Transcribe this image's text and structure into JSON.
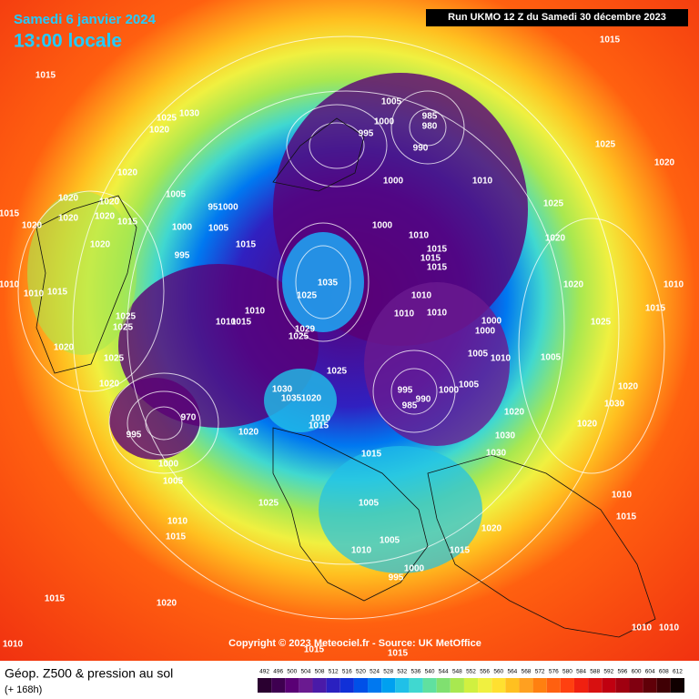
{
  "header": {
    "date": "Samedi 6 janvier 2024",
    "time": "13:00 locale",
    "run": "Run UKMO 12 Z du Samedi 30 décembre 2023"
  },
  "copyright": "Copyright © 2023 Meteociel.fr - Source: UK MetOffice",
  "footer": {
    "title": "Géop. Z500 & pression au sol",
    "lead": "(+ 168h)"
  },
  "scale": {
    "values": [
      492,
      496,
      500,
      504,
      508,
      512,
      516,
      520,
      524,
      528,
      532,
      536,
      540,
      544,
      548,
      552,
      556,
      560,
      564,
      568,
      572,
      576,
      580,
      584,
      588,
      592,
      596,
      600,
      604,
      608,
      612
    ],
    "colors": [
      "#2a0030",
      "#3e0050",
      "#5a0075",
      "#6a1a90",
      "#4a1aa8",
      "#2a20c0",
      "#1030d8",
      "#0050e8",
      "#0078f0",
      "#00a0f0",
      "#20c0e8",
      "#40d8d0",
      "#60e0a0",
      "#80e070",
      "#a8e850",
      "#d0f040",
      "#f0f040",
      "#ffe030",
      "#ffc020",
      "#ffa020",
      "#ff8010",
      "#ff6010",
      "#ff4010",
      "#f02010",
      "#d81010",
      "#c00010",
      "#a00010",
      "#800010",
      "#600008",
      "#400004",
      "#100000"
    ]
  },
  "isobar_labels": [
    "1015",
    "1025",
    "1030",
    "1020",
    "1020",
    "1020",
    "1015",
    "1020",
    "1020",
    "1020",
    "1020",
    "1015",
    "1020",
    "1005",
    "1000",
    "995",
    "951000",
    "1005",
    "1015",
    "1010",
    "1010",
    "1015",
    "1025",
    "1025",
    "1020",
    "1025",
    "1020",
    "1010",
    "1015",
    "1010",
    "1035",
    "1025",
    "1029",
    "1025",
    "1025",
    "1030",
    "1035",
    "1020",
    "1010",
    "1015",
    "970",
    "995",
    "1000",
    "1005",
    "1020",
    "1005",
    "1000",
    "985",
    "980",
    "990",
    "995",
    "1000",
    "1010",
    "1000",
    "1010",
    "1015",
    "1015",
    "1015",
    "1010",
    "1010",
    "1010",
    "1000",
    "1000",
    "1005",
    "1010",
    "995",
    "990",
    "985",
    "1000",
    "1005",
    "1020",
    "1030",
    "1030",
    "1015",
    "1005",
    "1010",
    "1005",
    "995",
    "1000",
    "1015",
    "1020",
    "1015",
    "1020",
    "1025",
    "1025",
    "1020",
    "1020",
    "1025",
    "1015",
    "1010",
    "1005",
    "1030",
    "1020",
    "1020",
    "1010",
    "1015",
    "1025",
    "1010",
    "1015",
    "1015",
    "1020",
    "1010",
    "1010",
    "1010",
    "1015",
    "1015"
  ]
}
